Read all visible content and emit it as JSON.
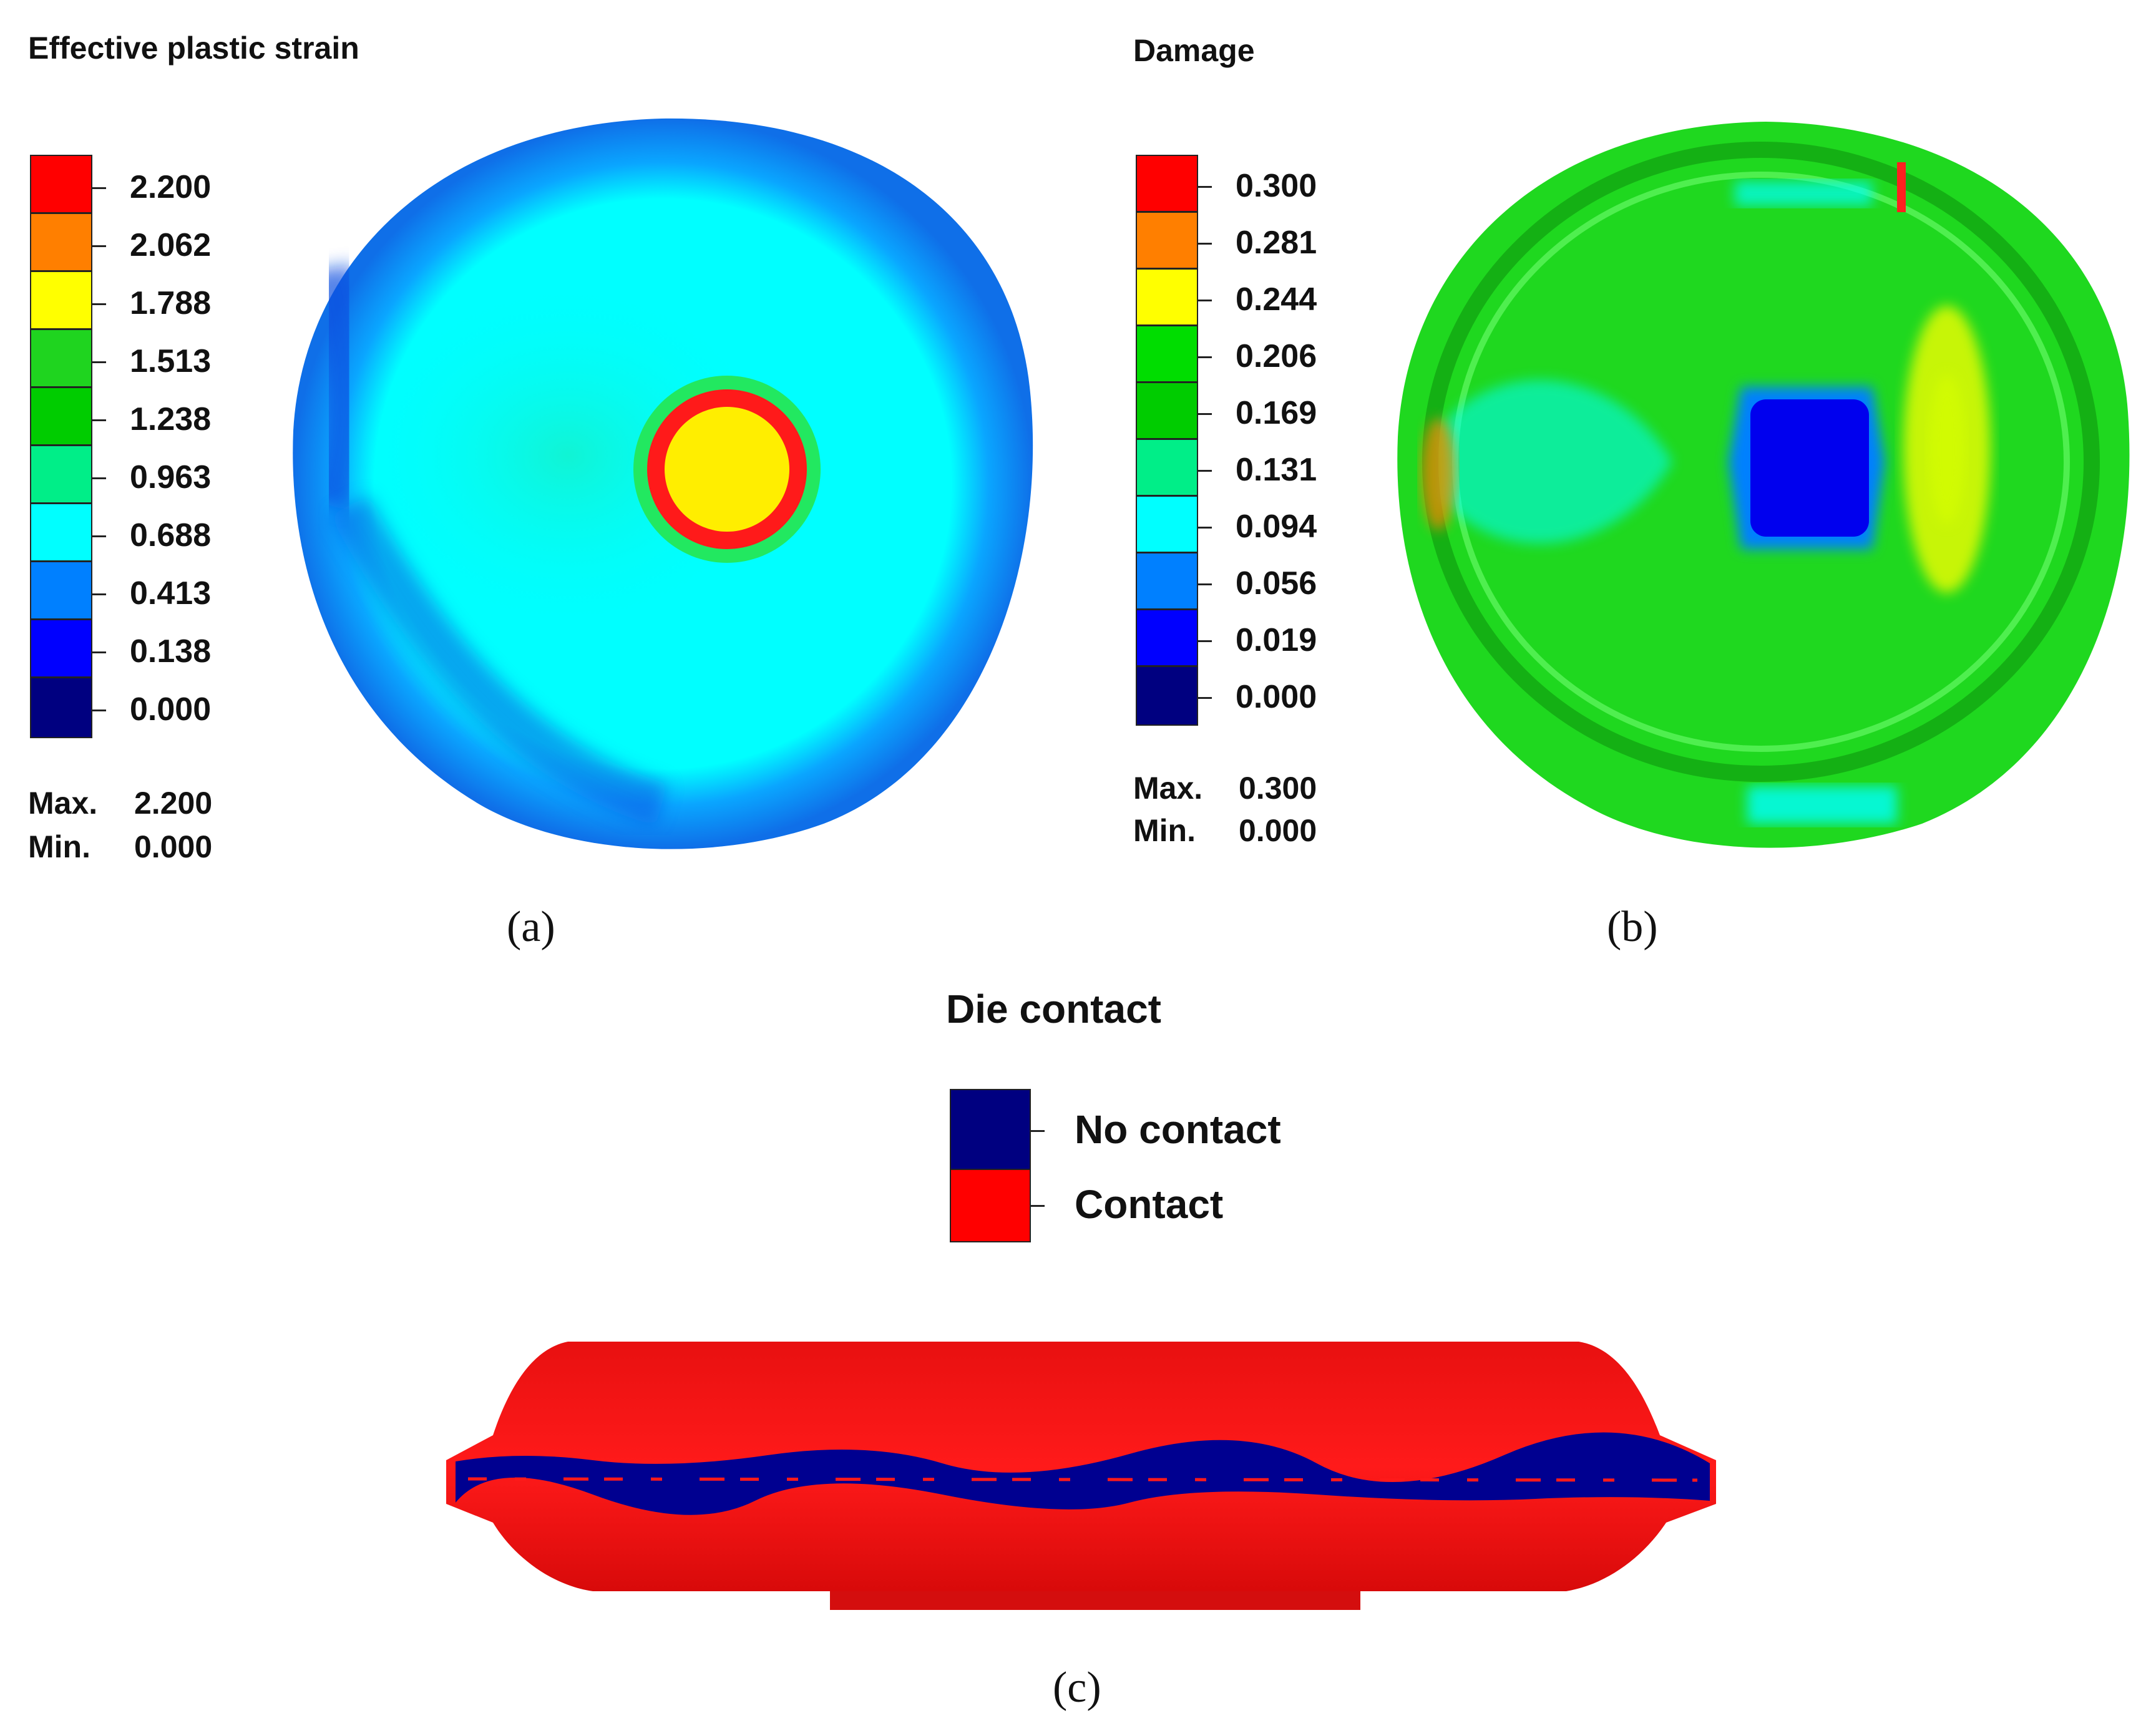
{
  "panel_a": {
    "title": "Effective plastic strain",
    "legend": [
      {
        "label": "2.200",
        "color": "#ff0000"
      },
      {
        "label": "2.062",
        "color": "#ff7f00"
      },
      {
        "label": "1.788",
        "color": "#ffff00"
      },
      {
        "label": "1.513",
        "color": "#1fd41f"
      },
      {
        "label": "1.238",
        "color": "#00cc00"
      },
      {
        "label": "0.963",
        "color": "#00ee88"
      },
      {
        "label": "0.688",
        "color": "#00ffff"
      },
      {
        "label": "0.413",
        "color": "#0080ff"
      },
      {
        "label": "0.138",
        "color": "#0000ff"
      },
      {
        "label": "0.000",
        "color": "#000080"
      }
    ],
    "max_label": "Max.",
    "max_value": "2.200",
    "min_label": "Min.",
    "min_value": "0.000",
    "caption": "(a)"
  },
  "panel_b": {
    "title": "Damage",
    "legend": [
      {
        "label": "0.300",
        "color": "#ff0000"
      },
      {
        "label": "0.281",
        "color": "#ff7f00"
      },
      {
        "label": "0.244",
        "color": "#ffff00"
      },
      {
        "label": "0.206",
        "color": "#00dd00"
      },
      {
        "label": "0.169",
        "color": "#00cc00"
      },
      {
        "label": "0.131",
        "color": "#00ee88"
      },
      {
        "label": "0.094",
        "color": "#00ffff"
      },
      {
        "label": "0.056",
        "color": "#0080ff"
      },
      {
        "label": "0.019",
        "color": "#0000ff"
      },
      {
        "label": "0.000",
        "color": "#000080"
      }
    ],
    "max_label": "Max.",
    "max_value": "0.300",
    "min_label": "Min.",
    "min_value": "0.000",
    "caption": "(b)"
  },
  "panel_c": {
    "title": "Die contact",
    "legend": [
      {
        "label": "No contact",
        "color": "#000080"
      },
      {
        "label": "Contact",
        "color": "#ff0000"
      }
    ],
    "caption": "(c)"
  }
}
